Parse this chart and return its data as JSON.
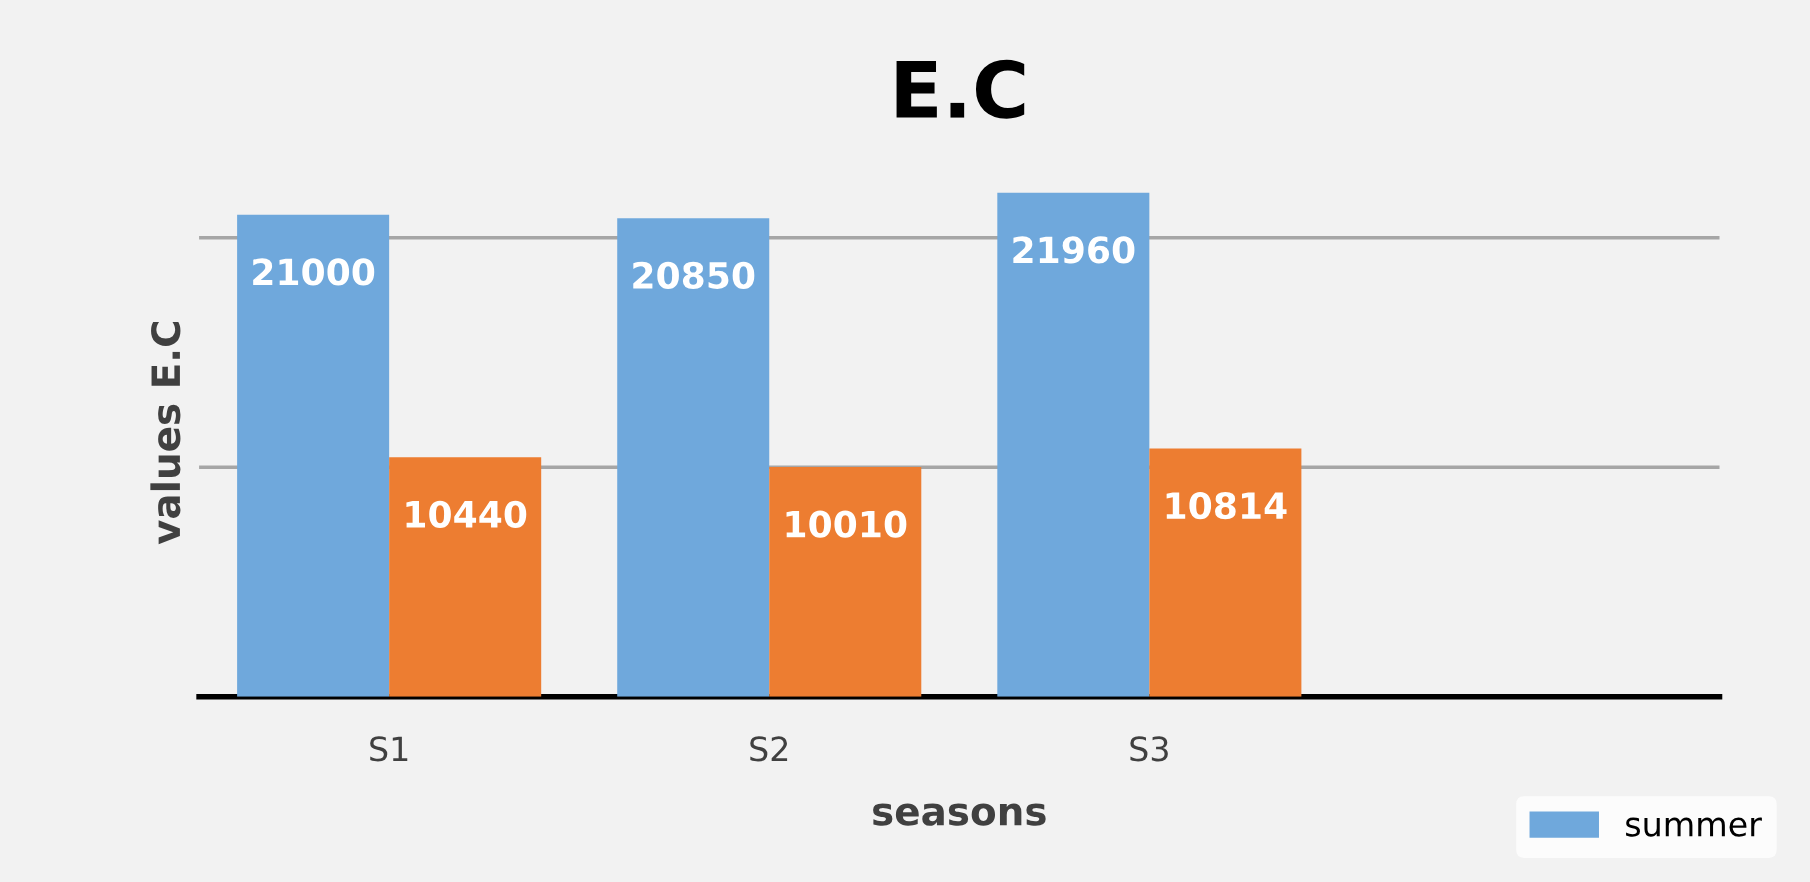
{
  "chart_data": {
    "type": "bar",
    "title": "E.C",
    "xlabel": "seasons",
    "ylabel": "values E.C",
    "categories": [
      "S1",
      "S2",
      "S3",
      null
    ],
    "series": [
      {
        "name": "summer",
        "color": "#6fa8dc",
        "values": [
          21000,
          20850,
          21960,
          null
        ]
      },
      {
        "color": "#ed7d31",
        "values": [
          10440,
          10010,
          10814,
          null
        ]
      }
    ],
    "ref_lines": [
      {
        "axis": "y",
        "value": 10000,
        "color": "#a6a6a6"
      },
      {
        "axis": "y",
        "value": 20000,
        "color": "#a6a6a6"
      }
    ],
    "legend": "bottom right",
    "data_labels": true
  }
}
